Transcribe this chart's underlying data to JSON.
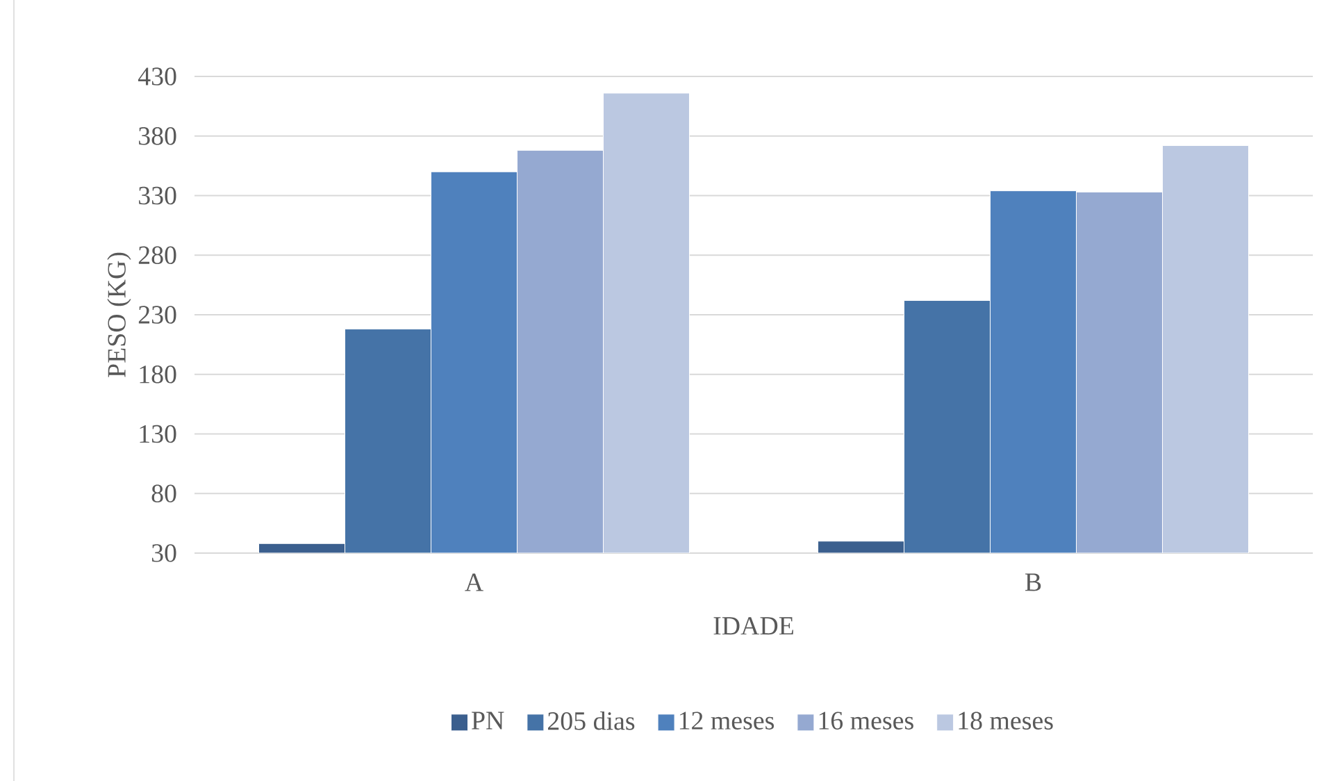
{
  "chart_data": {
    "type": "bar",
    "xlabel": "IDADE",
    "ylabel": "PESO (KG)",
    "categories": [
      "A",
      "B"
    ],
    "series": [
      {
        "name": "PN",
        "color": "#3b5f8e",
        "values": [
          38,
          40
        ]
      },
      {
        "name": "205 dias",
        "color": "#4573a7",
        "values": [
          218,
          242
        ]
      },
      {
        "name": "12 meses",
        "color": "#4f81bd",
        "values": [
          350,
          334
        ]
      },
      {
        "name": "16 meses",
        "color": "#95a9d1",
        "values": [
          368,
          333
        ]
      },
      {
        "name": "18 meses",
        "color": "#bbc8e1",
        "values": [
          416,
          372
        ]
      }
    ],
    "ylim": [
      30,
      430
    ],
    "yticks": [
      30,
      80,
      130,
      180,
      230,
      280,
      330,
      380,
      430
    ],
    "grid": "y",
    "legend": "bottom"
  }
}
